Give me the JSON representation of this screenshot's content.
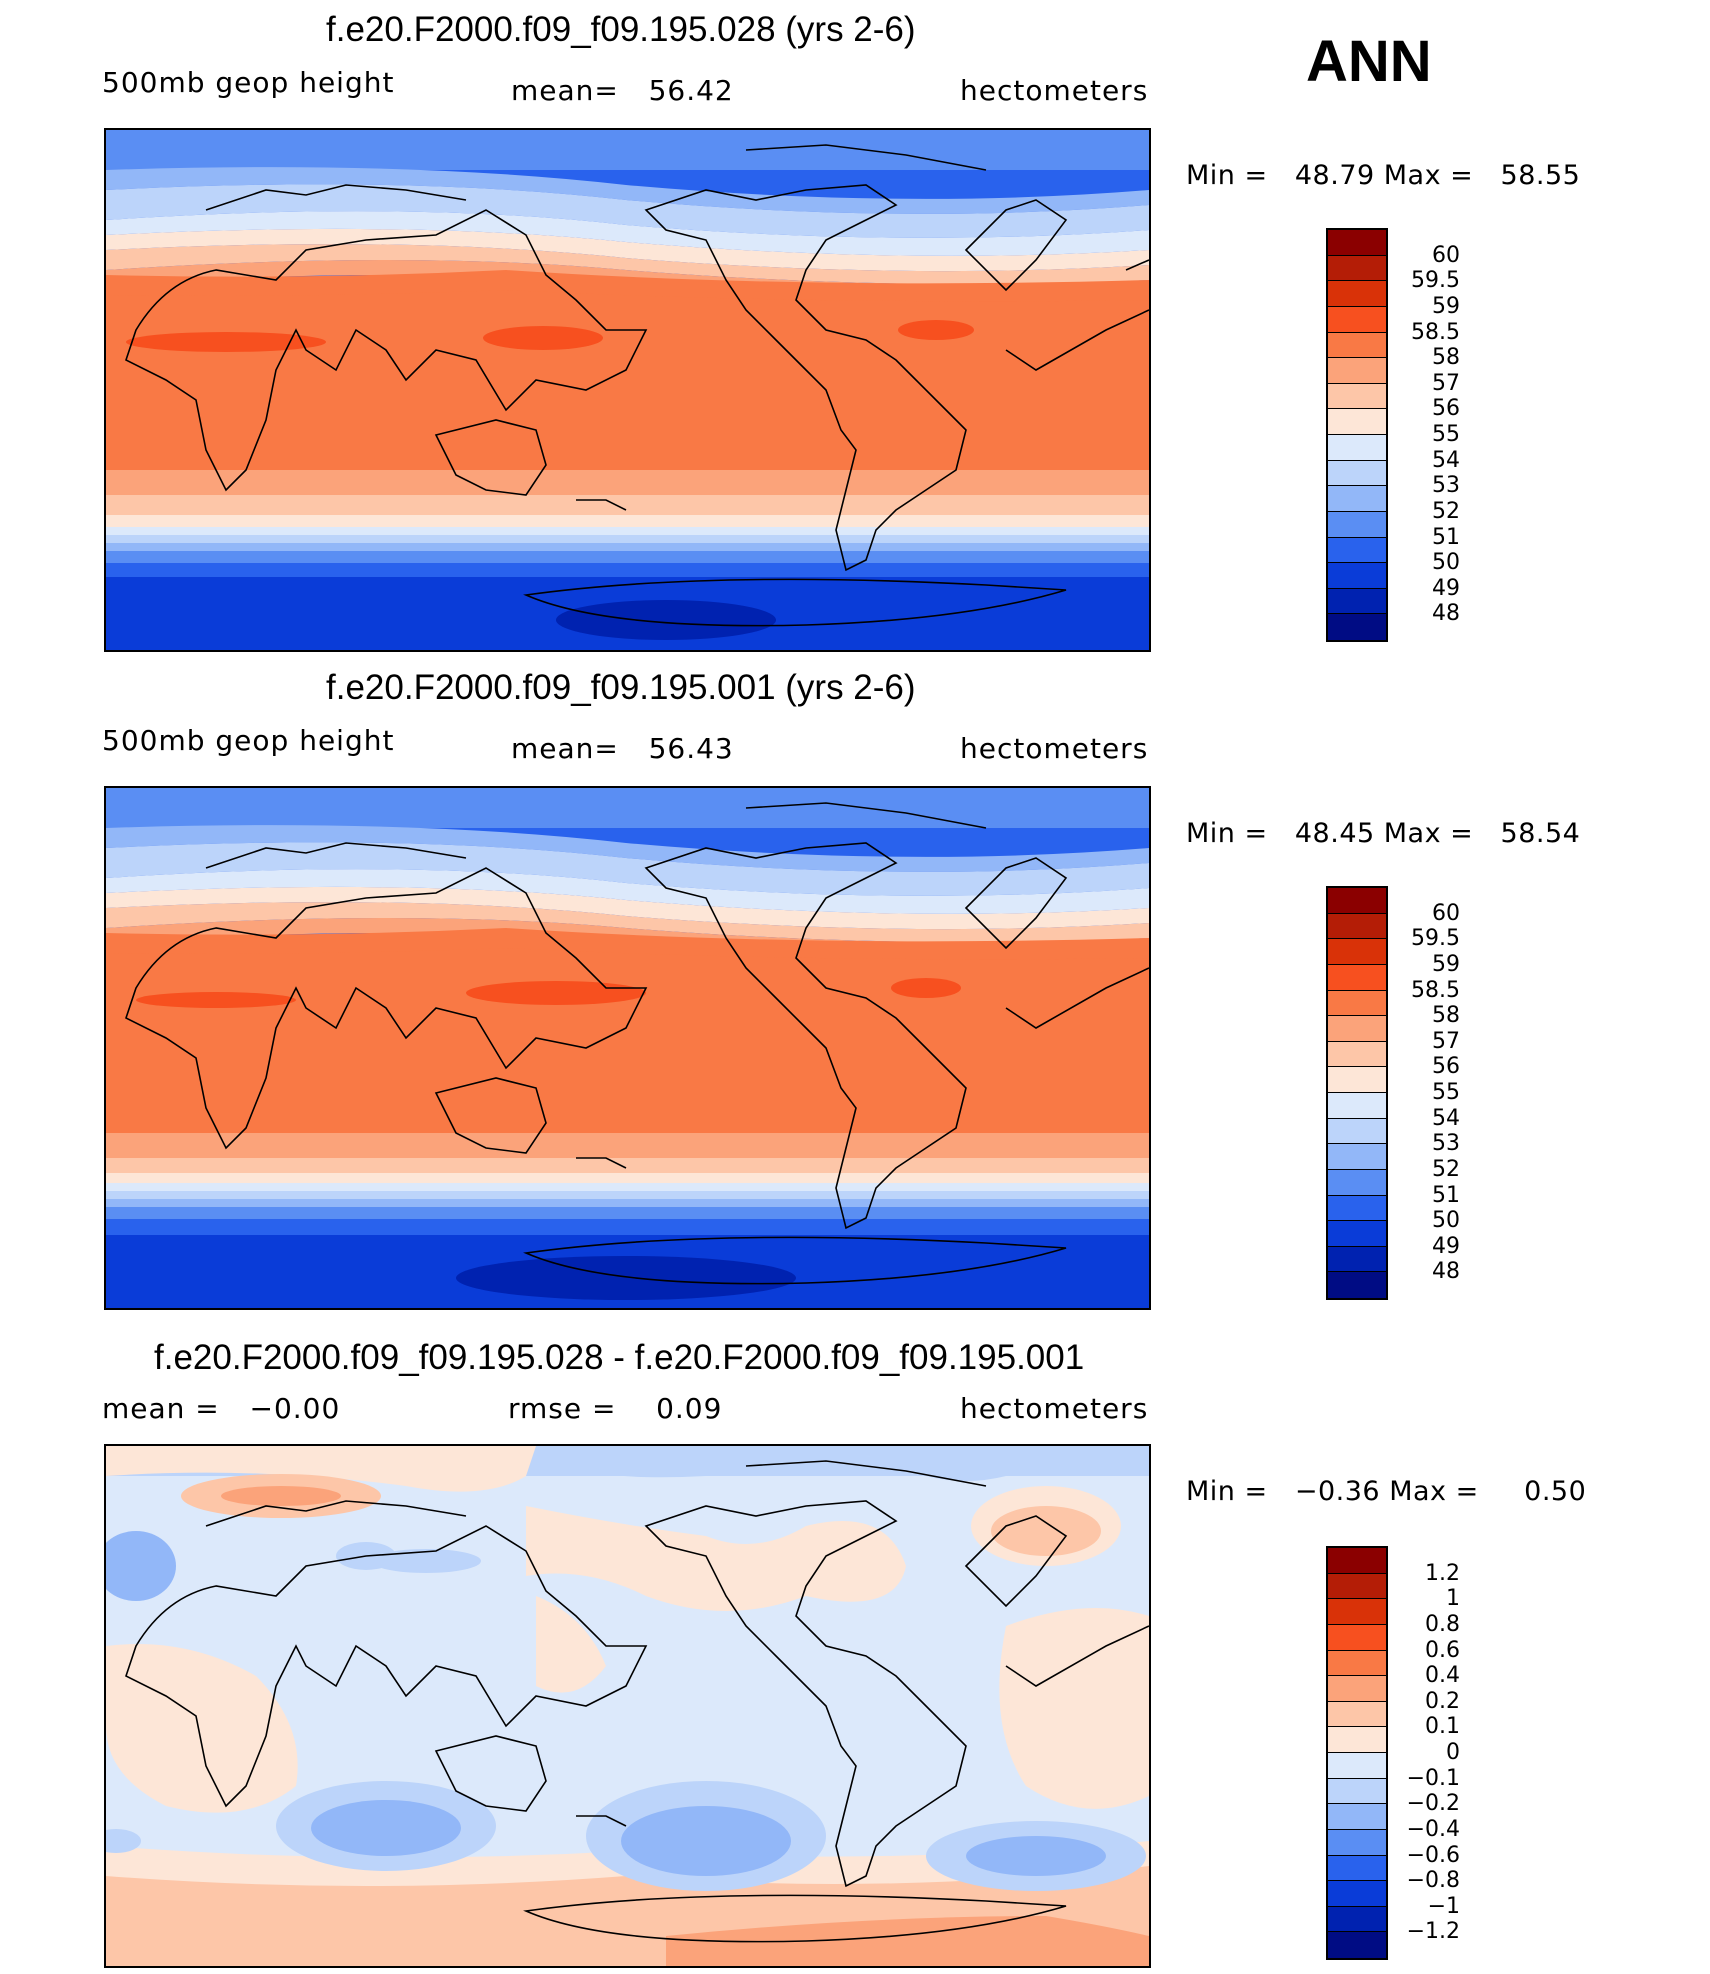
{
  "header": {
    "season": "ANN"
  },
  "panels": [
    {
      "title": "f.e20.F2000.f09_f09.195.028 (yrs 2-6)",
      "left": "500mb geop height",
      "center_label": "mean=",
      "center_value": "56.42",
      "right": "hectometers",
      "min_label": "Min =",
      "min_value": "48.79",
      "max_label": "Max =",
      "max_value": "58.55",
      "colorbar": [
        "60",
        "59.5",
        "59",
        "58.5",
        "58",
        "57",
        "56",
        "55",
        "54",
        "53",
        "52",
        "51",
        "50",
        "49",
        "48"
      ]
    },
    {
      "title": "f.e20.F2000.f09_f09.195.001 (yrs 2-6)",
      "left": "500mb geop height",
      "center_label": "mean=",
      "center_value": "56.43",
      "right": "hectometers",
      "min_label": "Min =",
      "min_value": "48.45",
      "max_label": "Max =",
      "max_value": "58.54",
      "colorbar": [
        "60",
        "59.5",
        "59",
        "58.5",
        "58",
        "57",
        "56",
        "55",
        "54",
        "53",
        "52",
        "51",
        "50",
        "49",
        "48"
      ]
    },
    {
      "title": "f.e20.F2000.f09_f09.195.028 - f.e20.F2000.f09_f09.195.001",
      "left_label": "mean =",
      "left_value": "−0.00",
      "center_label": "rmse =",
      "center_value": "0.09",
      "right": "hectometers",
      "min_label": "Min =",
      "min_value": "−0.36",
      "max_label": "Max =",
      "max_value": "0.50",
      "colorbar": [
        "1.2",
        "1",
        "0.8",
        "0.6",
        "0.4",
        "0.2",
        "0.1",
        "0",
        "−0.1",
        "−0.2",
        "−0.4",
        "−0.6",
        "−0.8",
        "−1",
        "−1.2"
      ]
    }
  ],
  "colors": {
    "scale": [
      "#8b0000",
      "#b41d06",
      "#d93208",
      "#f7501f",
      "#f97945",
      "#fba37a",
      "#fdc6a8",
      "#fde6d7",
      "#dce9fb",
      "#bcd4fa",
      "#92b7f8",
      "#5a8ef3",
      "#2962ed",
      "#0a3cd8",
      "#0022b0",
      "#000c84"
    ]
  }
}
